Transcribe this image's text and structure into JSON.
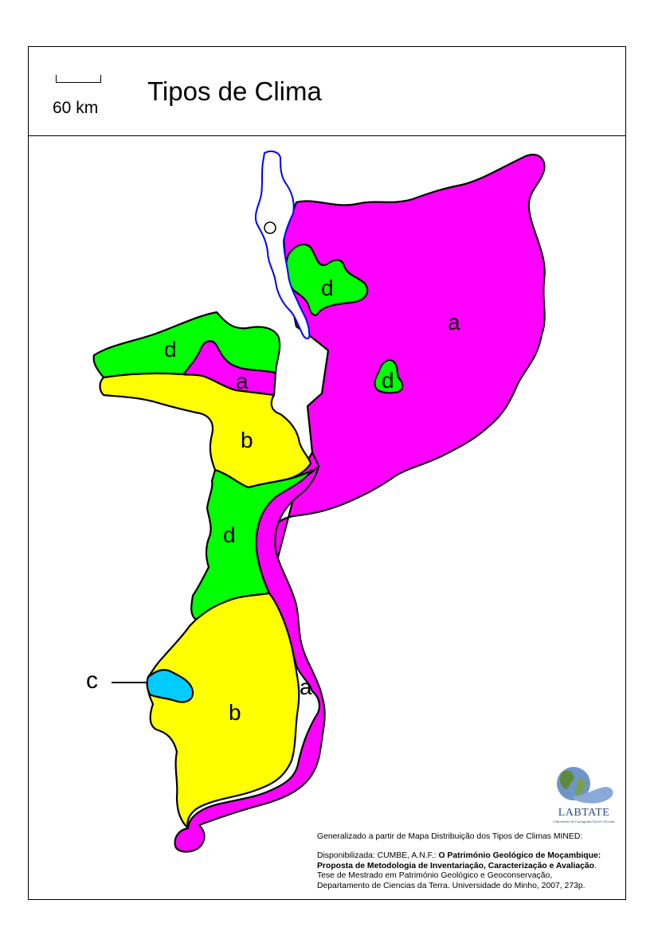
{
  "header": {
    "title": "Tipos de Clima",
    "scale_label": "60 km"
  },
  "legend_colors": {
    "a": "#ff00ff",
    "b": "#ffff00",
    "c": "#00ccff",
    "d": "#00ff00",
    "lake": "#ffffff",
    "lake_outline": "#0000ff"
  },
  "zones": {
    "a_north": "a",
    "d_north": "d",
    "d_center": "d",
    "d_tete": "d",
    "a_tete": "a",
    "b_tete": "b",
    "d_central": "d",
    "b_south": "b",
    "a_coast": "a",
    "c_callout": "c"
  },
  "logo": {
    "name": "LABTATE",
    "tagline": "Laboratório de Cartografia Táctil e Escolar",
    "icon": "globe-hand-icon"
  },
  "credits": {
    "line1": "Generalizado a partir de Mapa Distribuição dos Tipos de Climas MINED:",
    "line2_prefix": "Disponibilizada: CUMBE, A.N.F.: ",
    "line2_bold": "O Património Geológico de Moçambique:",
    "line3_bold": "Proposta de Metodologia de Inventariação, Caracterização e Avaliação",
    "line3_suffix": ".",
    "line4": "Tese de Mestrado em Património Geológico e Geoconservação,",
    "line5": "Departamento de Ciencias da Terra. Universidade do Minho, 2007, 273p."
  }
}
